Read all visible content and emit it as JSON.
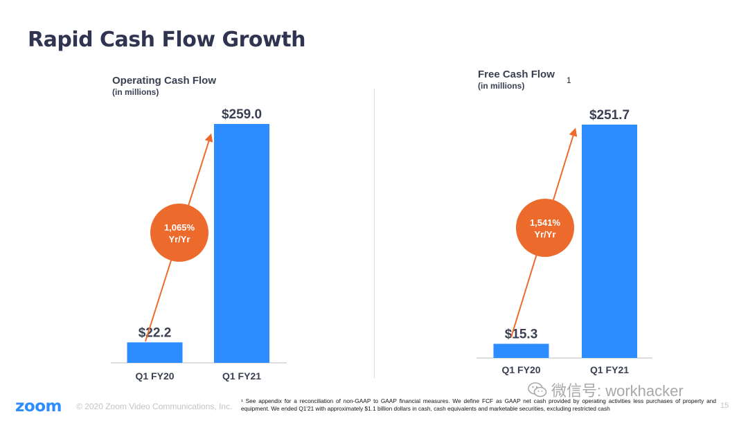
{
  "slide": {
    "title": "Rapid Cash Flow Growth",
    "logo": "zoom",
    "copyright": "© 2020 Zoom Video Communications, Inc.",
    "page_number": "15",
    "footnote": "¹ See appendix for a reconciliation of non-GAAP to GAAP financial measures. We define FCF as GAAP net cash provided by operating activities less purchases of property and equipment. We ended Q1'21 with approximately $1.1 billion dollars in cash, cash equivalents and marketable securities, excluding restricted cash",
    "watermark": "微信号: workhacker"
  },
  "colors": {
    "bar": "#2d8cff",
    "arrow": "#ec6a2c",
    "badge": "#ec6a2c",
    "title": "#2f3550",
    "axis": "#555555"
  },
  "chart_data": [
    {
      "type": "bar",
      "title": "Operating Cash Flow",
      "subtitle": "(in millions)",
      "footnote_marker": "",
      "categories": [
        "Q1 FY20",
        "Q1 FY21"
      ],
      "values": [
        22.2,
        259.0
      ],
      "value_labels": [
        "$22.2",
        "$259.0"
      ],
      "growth_badge": [
        "1,065%",
        "Yr/Yr"
      ],
      "ylim": [
        0,
        259.0
      ]
    },
    {
      "type": "bar",
      "title": "Free Cash Flow",
      "subtitle": "(in millions)",
      "footnote_marker": "1",
      "categories": [
        "Q1 FY20",
        "Q1 FY21"
      ],
      "values": [
        15.3,
        251.7
      ],
      "value_labels": [
        "$15.3",
        "$251.7"
      ],
      "growth_badge": [
        "1,541%",
        "Yr/Yr"
      ],
      "ylim": [
        0,
        251.7
      ]
    }
  ]
}
